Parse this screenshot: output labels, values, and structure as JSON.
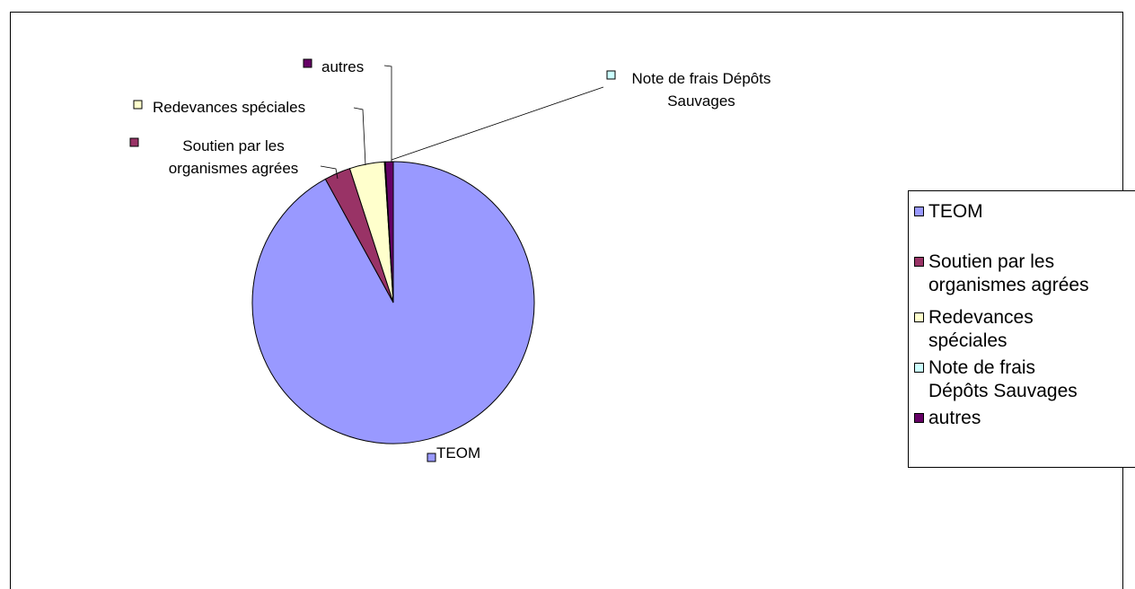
{
  "chart_data": {
    "type": "pie",
    "title": "",
    "categories": [
      "TEOM",
      "Soutien par les organismes agrées",
      "Redevances spéciales",
      "Note de frais Dépôts Sauvages",
      "autres"
    ],
    "values": [
      92.0,
      3.0,
      4.0,
      0.1,
      0.9
    ],
    "unit": "%",
    "colors": [
      "#9999FF",
      "#993366",
      "#FFFFCC",
      "#CCFFFF",
      "#660066"
    ],
    "slice_labels": [
      {
        "lines": [
          "TEOM"
        ]
      },
      {
        "lines": [
          "Soutien par les",
          "organismes agrées"
        ]
      },
      {
        "lines": [
          "Redevances spéciales"
        ]
      },
      {
        "lines": [
          "Note de frais Dépôts",
          "Sauvages"
        ]
      },
      {
        "lines": [
          "autres"
        ]
      }
    ],
    "legend": {
      "position": "right",
      "entries": [
        {
          "lines": [
            "TEOM"
          ]
        },
        {
          "lines": [
            "Soutien par les",
            "organismes agrées"
          ]
        },
        {
          "lines": [
            "Redevances",
            "spéciales"
          ]
        },
        {
          "lines": [
            "Note de frais",
            "Dépôts Sauvages"
          ]
        },
        {
          "lines": [
            "autres"
          ]
        }
      ]
    }
  }
}
